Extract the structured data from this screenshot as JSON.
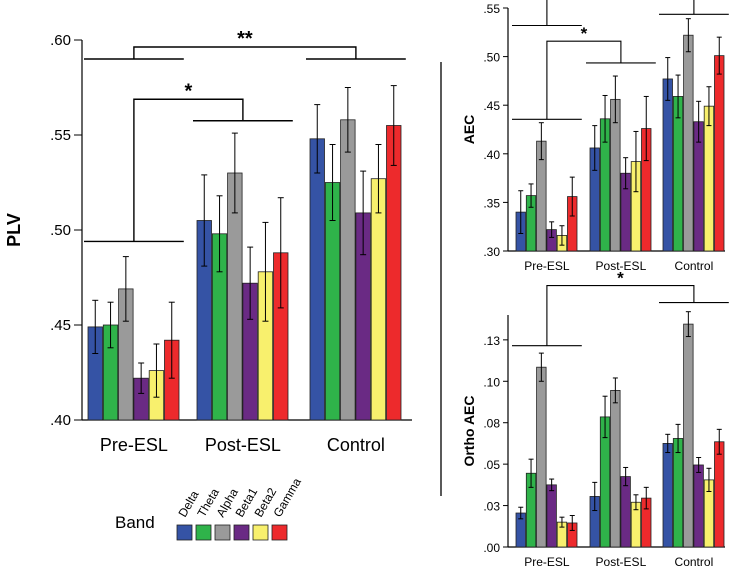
{
  "legend": {
    "title": "Band",
    "bands": [
      "Delta",
      "Theta",
      "Alpha",
      "Beta1",
      "Beta2",
      "Gamma"
    ],
    "colors": [
      "#3553a5",
      "#2fb34a",
      "#9a9a9a",
      "#6a2a84",
      "#f8f06d",
      "#ed2a2c"
    ]
  },
  "chart_data": [
    {
      "type": "bar",
      "id": "plv",
      "ylabel": "PLV",
      "ylim": [
        0.4,
        0.6
      ],
      "yticks": [
        0.4,
        0.45,
        0.5,
        0.55,
        0.6
      ],
      "ytick_labels": [
        ".40",
        ".45",
        ".50",
        ".55",
        ".60"
      ],
      "categories": [
        "Pre-ESL",
        "Post-ESL",
        "Control"
      ],
      "series": [
        {
          "name": "Delta",
          "values": [
            0.449,
            0.505,
            0.548
          ],
          "err": [
            0.014,
            0.024,
            0.018
          ]
        },
        {
          "name": "Theta",
          "values": [
            0.45,
            0.498,
            0.525
          ],
          "err": [
            0.012,
            0.02,
            0.02
          ]
        },
        {
          "name": "Alpha",
          "values": [
            0.469,
            0.53,
            0.558
          ],
          "err": [
            0.017,
            0.021,
            0.017
          ]
        },
        {
          "name": "Beta1",
          "values": [
            0.422,
            0.472,
            0.509
          ],
          "err": [
            0.008,
            0.019,
            0.022
          ]
        },
        {
          "name": "Beta2",
          "values": [
            0.426,
            0.478,
            0.527
          ],
          "err": [
            0.014,
            0.026,
            0.018
          ]
        },
        {
          "name": "Gamma",
          "values": [
            0.442,
            0.488,
            0.555
          ],
          "err": [
            0.02,
            0.029,
            0.021
          ]
        }
      ],
      "annotations": [
        {
          "text": "**",
          "from": 0,
          "to": 2,
          "level": 0.59
        },
        {
          "text": "*",
          "from": 0,
          "to": 1,
          "level": 0.5625
        }
      ],
      "group_lines": [
        {
          "group": 0,
          "level": 0.494
        },
        {
          "group": 0,
          "level": 0.59
        },
        {
          "group": 1,
          "level": 0.5575
        },
        {
          "group": 2,
          "level": 0.59
        }
      ]
    },
    {
      "type": "bar",
      "id": "aec",
      "ylabel": "AEC",
      "ylim": [
        0.3,
        0.55
      ],
      "yticks": [
        0.3,
        0.35,
        0.4,
        0.45,
        0.5,
        0.55
      ],
      "ytick_labels": [
        ".30",
        ".35",
        ".40",
        ".45",
        ".50",
        ".55"
      ],
      "categories": [
        "Pre-ESL",
        "Post-ESL",
        "Control"
      ],
      "series": [
        {
          "name": "Delta",
          "values": [
            0.34,
            0.406,
            0.477
          ],
          "err": [
            0.022,
            0.023,
            0.022
          ]
        },
        {
          "name": "Theta",
          "values": [
            0.357,
            0.436,
            0.459
          ],
          "err": [
            0.012,
            0.024,
            0.022
          ]
        },
        {
          "name": "Alpha",
          "values": [
            0.413,
            0.456,
            0.522
          ],
          "err": [
            0.019,
            0.024,
            0.017
          ]
        },
        {
          "name": "Beta1",
          "values": [
            0.322,
            0.38,
            0.433
          ],
          "err": [
            0.008,
            0.016,
            0.021
          ]
        },
        {
          "name": "Beta2",
          "values": [
            0.316,
            0.392,
            0.449
          ],
          "err": [
            0.01,
            0.031,
            0.02
          ]
        },
        {
          "name": "Gamma",
          "values": [
            0.356,
            0.426,
            0.501
          ],
          "err": [
            0.02,
            0.033,
            0.019
          ]
        }
      ],
      "annotations": [
        {
          "text": "**",
          "from": 0,
          "to": 2,
          "level": 0.5465
        },
        {
          "text": "*",
          "from": 0,
          "to": 1,
          "level": 0.5035
        }
      ],
      "group_lines": [
        {
          "group": 0,
          "level": 0.532
        },
        {
          "group": 0,
          "level": 0.4355
        },
        {
          "group": 1,
          "level": 0.4935
        },
        {
          "group": 2,
          "level": 0.5435
        }
      ]
    },
    {
      "type": "bar",
      "id": "ortho_aec",
      "ylabel": "Ortho AEC",
      "ylim": [
        0.0,
        0.14
      ],
      "yticks": [
        0.0,
        0.025,
        0.05,
        0.075,
        0.1,
        0.125
      ],
      "ytick_labels": [
        ".00",
        ".03",
        ".05",
        ".08",
        ".10",
        ".13"
      ],
      "categories": [
        "Pre-ESL",
        "Post-ESL",
        "Control"
      ],
      "series": [
        {
          "name": "Delta",
          "values": [
            0.0205,
            0.0305,
            0.0625
          ],
          "err": [
            0.0035,
            0.0085,
            0.0055
          ]
        },
        {
          "name": "Theta",
          "values": [
            0.0445,
            0.0785,
            0.0655
          ],
          "err": [
            0.0085,
            0.0125,
            0.0085
          ]
        },
        {
          "name": "Alpha",
          "values": [
            0.1085,
            0.0945,
            0.1345
          ],
          "err": [
            0.0085,
            0.0075,
            0.0075
          ]
        },
        {
          "name": "Beta1",
          "values": [
            0.0375,
            0.0425,
            0.0495
          ],
          "err": [
            0.0035,
            0.0055,
            0.0045
          ]
        },
        {
          "name": "Beta2",
          "values": [
            0.015,
            0.027,
            0.0405
          ],
          "err": [
            0.003,
            0.0045,
            0.007
          ]
        },
        {
          "name": "Gamma",
          "values": [
            0.0145,
            0.0295,
            0.0635
          ],
          "err": [
            0.0045,
            0.0065,
            0.0075
          ]
        }
      ],
      "annotations": [
        {
          "text": "*",
          "from": 0,
          "to": 2,
          "level": 0.1505
        }
      ],
      "group_lines": [
        {
          "group": 0,
          "level": 0.1215
        },
        {
          "group": 2,
          "level": 0.1475
        }
      ]
    }
  ]
}
